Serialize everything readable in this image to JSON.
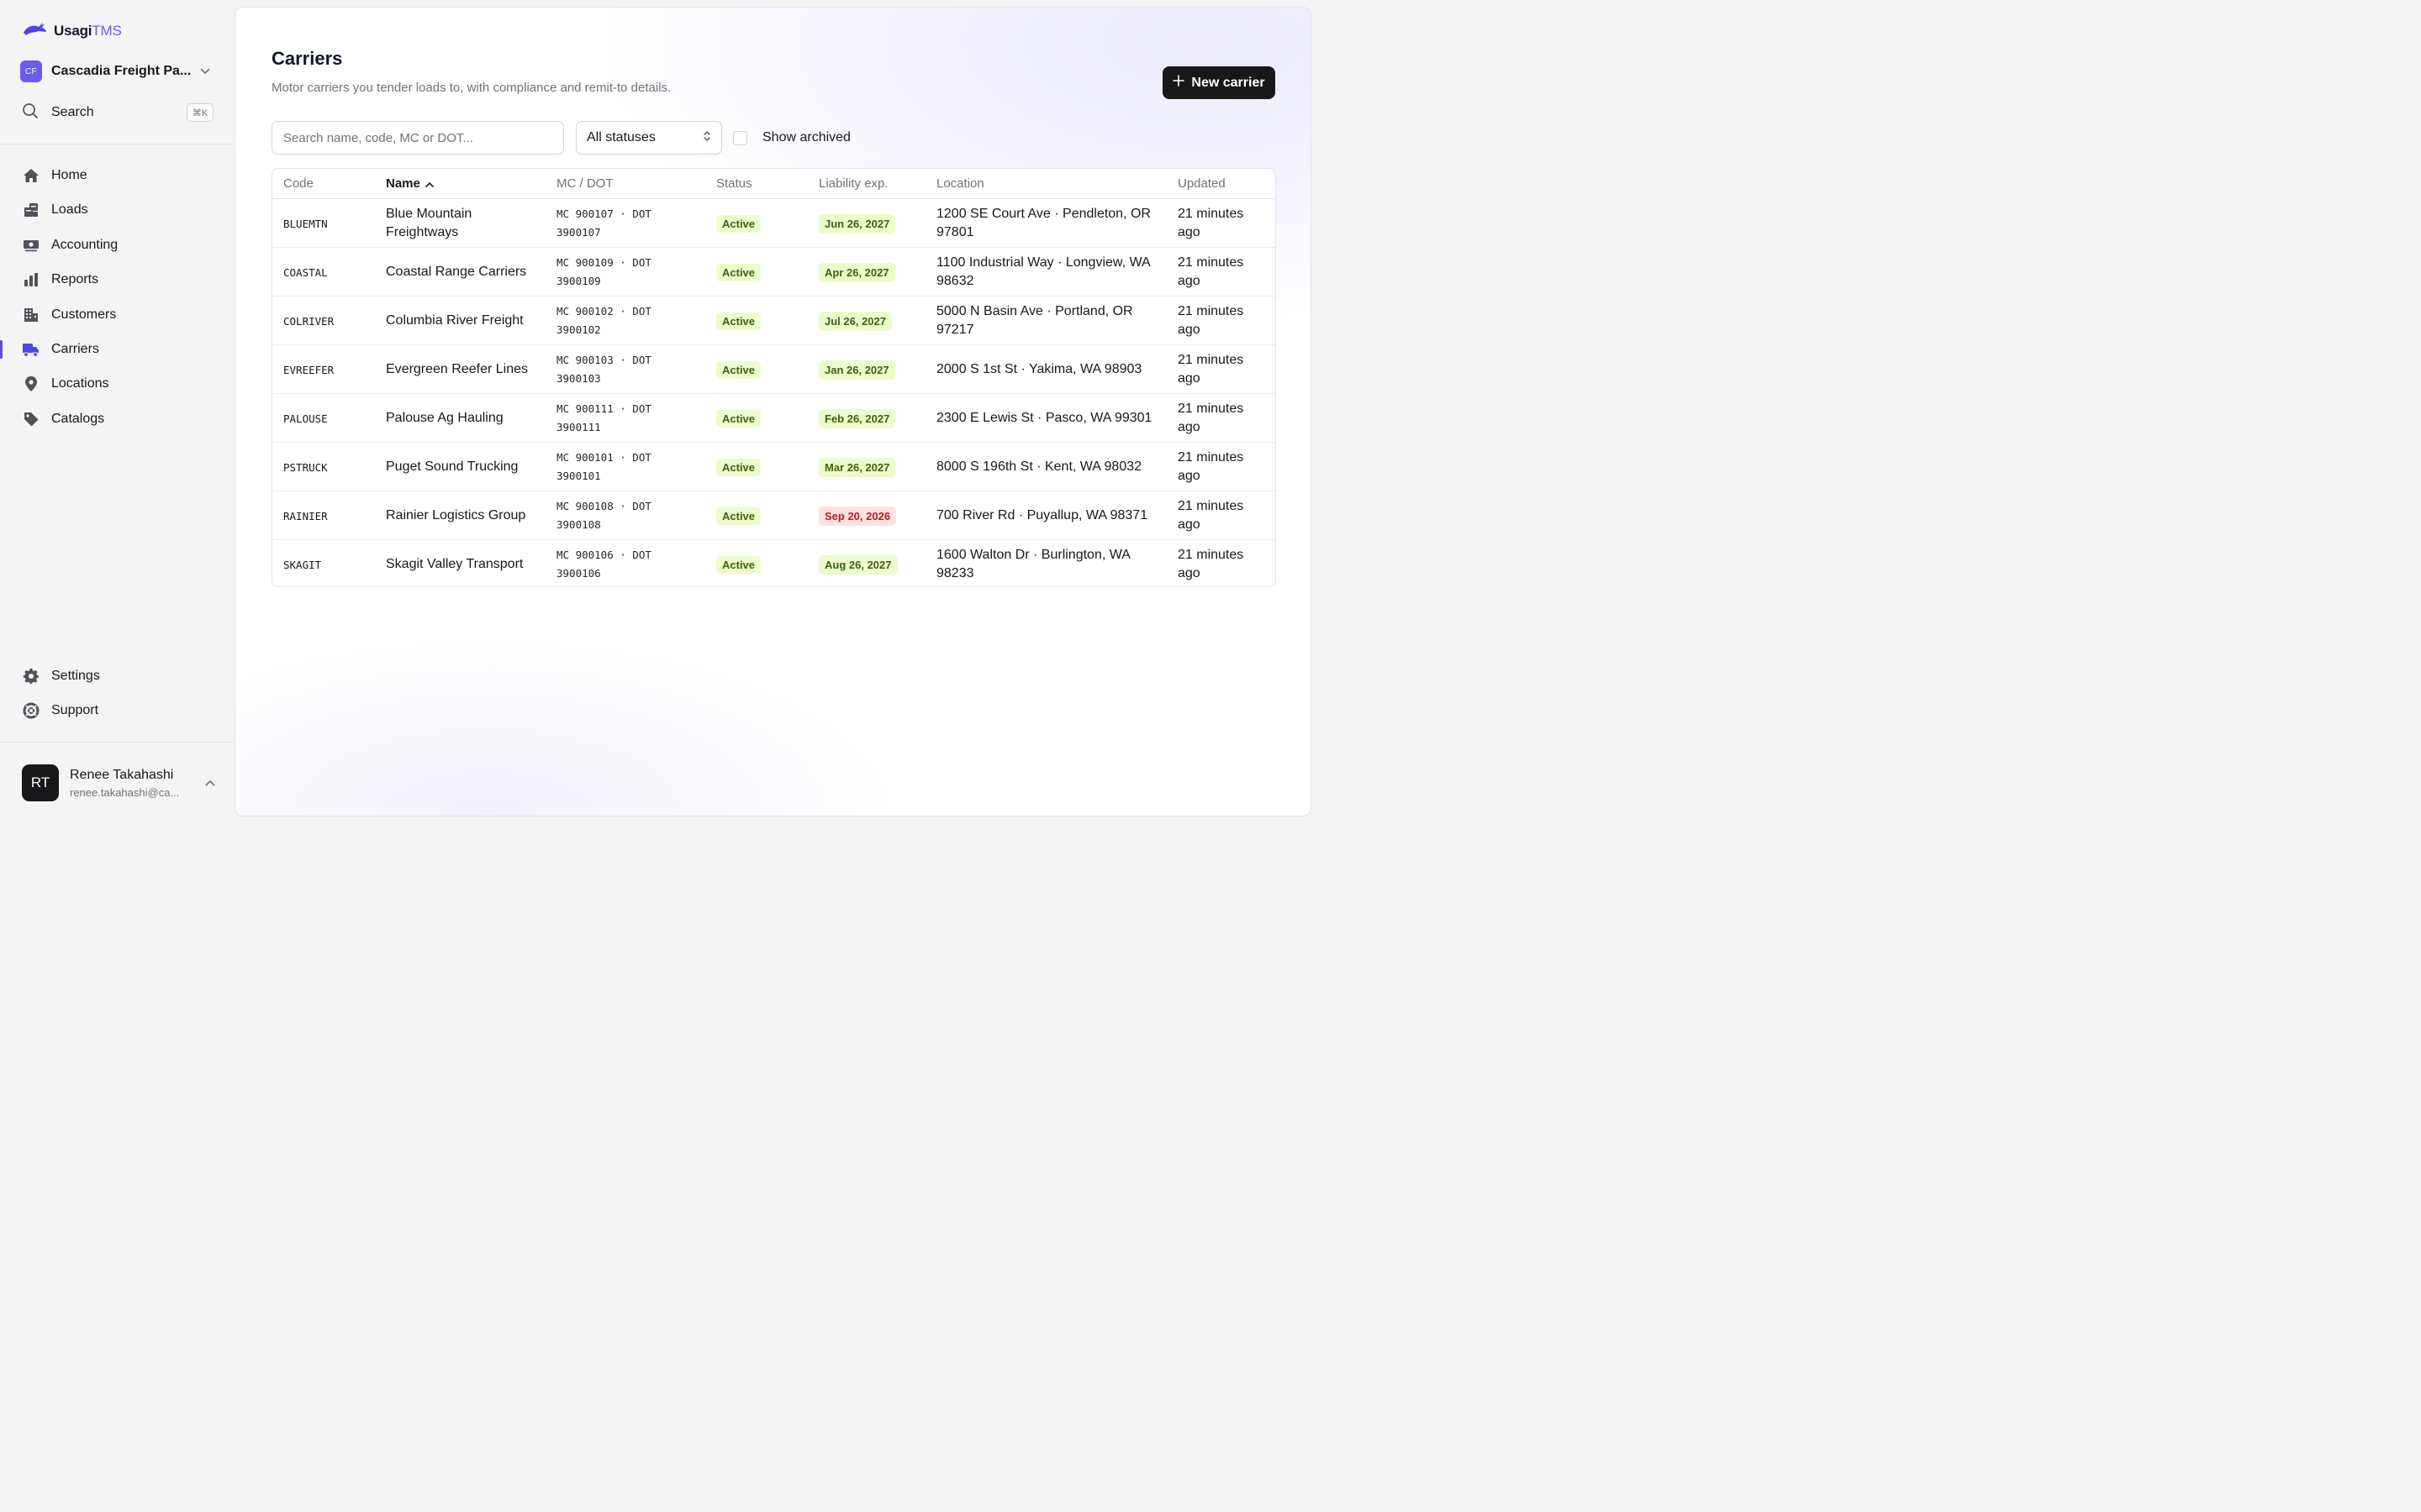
{
  "app": {
    "logo_name": "Usagi",
    "logo_suffix": "TMS",
    "org_initials": "CF",
    "org_name": "Cascadia Freight Pa...",
    "search_label": "Search",
    "search_shortcut": "⌘K"
  },
  "nav": {
    "home": "Home",
    "loads": "Loads",
    "accounting": "Accounting",
    "reports": "Reports",
    "customers": "Customers",
    "carriers": "Carriers",
    "locations": "Locations",
    "catalogs": "Catalogs",
    "settings": "Settings",
    "support": "Support"
  },
  "user": {
    "initials": "RT",
    "name": "Renee Takahashi",
    "email": "renee.takahashi@ca..."
  },
  "page": {
    "title": "Carriers",
    "subtitle": "Motor carriers you tender loads to, with compliance and remit-to details.",
    "new_button": "New carrier",
    "search_placeholder": "Search name, code, MC or DOT...",
    "status_filter": "All statuses",
    "show_archived": "Show archived"
  },
  "table": {
    "headers": {
      "code": "Code",
      "name": "Name",
      "mcdot": "MC / DOT",
      "status": "Status",
      "liability": "Liability exp.",
      "location": "Location",
      "updated": "Updated"
    },
    "rows": [
      {
        "code": "BLUEMTN",
        "name": "Blue Mountain Freightways",
        "mc": "MC 900107 · DOT",
        "dot": "3900107",
        "status": "Active",
        "liability": "Jun 26, 2027",
        "liability_state": "ok",
        "location": "1200 SE Court Ave · Pendleton, OR 97801",
        "updated": "21 minutes ago"
      },
      {
        "code": "COASTAL",
        "name": "Coastal Range Carriers",
        "mc": "MC 900109 · DOT",
        "dot": "3900109",
        "status": "Active",
        "liability": "Apr 26, 2027",
        "liability_state": "ok",
        "location": "1100 Industrial Way · Longview, WA 98632",
        "updated": "21 minutes ago"
      },
      {
        "code": "COLRIVER",
        "name": "Columbia River Freight",
        "mc": "MC 900102 · DOT",
        "dot": "3900102",
        "status": "Active",
        "liability": "Jul 26, 2027",
        "liability_state": "ok",
        "location": "5000 N Basin Ave · Portland, OR 97217",
        "updated": "21 minutes ago"
      },
      {
        "code": "EVREEFER",
        "name": "Evergreen Reefer Lines",
        "mc": "MC 900103 · DOT",
        "dot": "3900103",
        "status": "Active",
        "liability": "Jan 26, 2027",
        "liability_state": "ok",
        "location": "2000 S 1st St · Yakima, WA 98903",
        "updated": "21 minutes ago"
      },
      {
        "code": "PALOUSE",
        "name": "Palouse Ag Hauling",
        "mc": "MC 900111 · DOT",
        "dot": "3900111",
        "status": "Active",
        "liability": "Feb 26, 2027",
        "liability_state": "ok",
        "location": "2300 E Lewis St · Pasco, WA 99301",
        "updated": "21 minutes ago"
      },
      {
        "code": "PSTRUCK",
        "name": "Puget Sound Trucking",
        "mc": "MC 900101 · DOT",
        "dot": "3900101",
        "status": "Active",
        "liability": "Mar 26, 2027",
        "liability_state": "ok",
        "location": "8000 S 196th St · Kent, WA 98032",
        "updated": "21 minutes ago"
      },
      {
        "code": "RAINIER",
        "name": "Rainier Logistics Group",
        "mc": "MC 900108 · DOT",
        "dot": "3900108",
        "status": "Active",
        "liability": "Sep 20, 2026",
        "liability_state": "warn",
        "location": "700 River Rd · Puyallup, WA 98371",
        "updated": "21 minutes ago"
      },
      {
        "code": "SKAGIT",
        "name": "Skagit Valley Transport",
        "mc": "MC 900106 · DOT",
        "dot": "3900106",
        "status": "Active",
        "liability": "Aug 26, 2027",
        "liability_state": "ok",
        "location": "1600 Walton Dr · Burlington, WA 98233",
        "updated": "21 minutes ago"
      }
    ]
  },
  "colors": {
    "accent": "#6d5ce8",
    "active_badge_bg": "#ecfccb",
    "active_badge_text": "#3f6212",
    "expiring_badge_bg": "#fee2e2",
    "expiring_badge_text": "#b91c1c"
  }
}
